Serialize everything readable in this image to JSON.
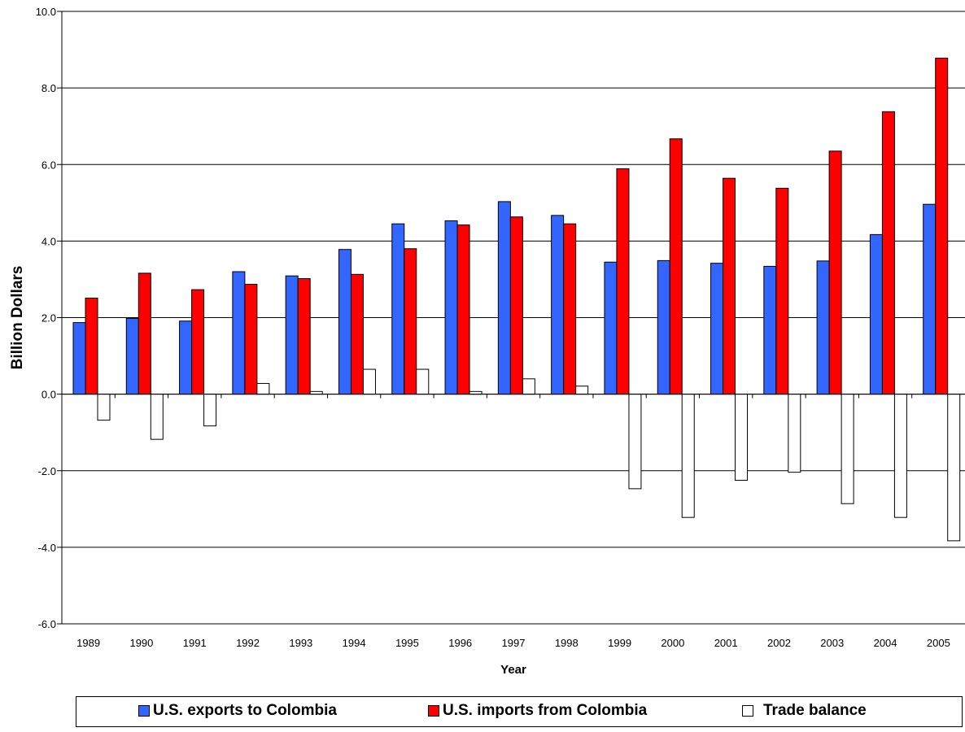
{
  "chart_data": {
    "type": "bar",
    "title": "",
    "xlabel": "Year",
    "ylabel": "Billion Dollars",
    "ylim": [
      -6,
      10
    ],
    "yticks": [
      "10.0",
      "8.0",
      "6.0",
      "4.0",
      "2.0",
      "0.0",
      "-2.0",
      "-4.0",
      "-6.0"
    ],
    "grid": true,
    "legend_position": "bottom",
    "categories": [
      "1989",
      "1990",
      "1991",
      "1992",
      "1993",
      "1994",
      "1995",
      "1996",
      "1997",
      "1998",
      "1999",
      "2000",
      "2001",
      "2002",
      "2003",
      "2004",
      "2005"
    ],
    "series": [
      {
        "name": "U.S. exports to Colombia",
        "color": "#3366ff",
        "values": [
          1.87,
          1.98,
          1.91,
          3.2,
          3.09,
          3.78,
          4.45,
          4.53,
          5.03,
          4.67,
          3.45,
          3.49,
          3.42,
          3.34,
          3.48,
          4.17,
          4.96
        ]
      },
      {
        "name": "U.S. imports from Colombia",
        "color": "#ff0000",
        "values": [
          2.51,
          3.16,
          2.73,
          2.87,
          3.02,
          3.13,
          3.8,
          4.42,
          4.63,
          4.45,
          5.89,
          6.67,
          5.64,
          5.38,
          6.35,
          7.38,
          8.78
        ]
      },
      {
        "name": "Trade balance",
        "color": "#ffffff",
        "values": [
          -0.68,
          -1.18,
          -0.83,
          0.28,
          0.07,
          0.65,
          0.65,
          0.07,
          0.4,
          0.21,
          -2.47,
          -3.22,
          -2.25,
          -2.04,
          -2.86,
          -3.22,
          -3.83
        ]
      }
    ]
  }
}
